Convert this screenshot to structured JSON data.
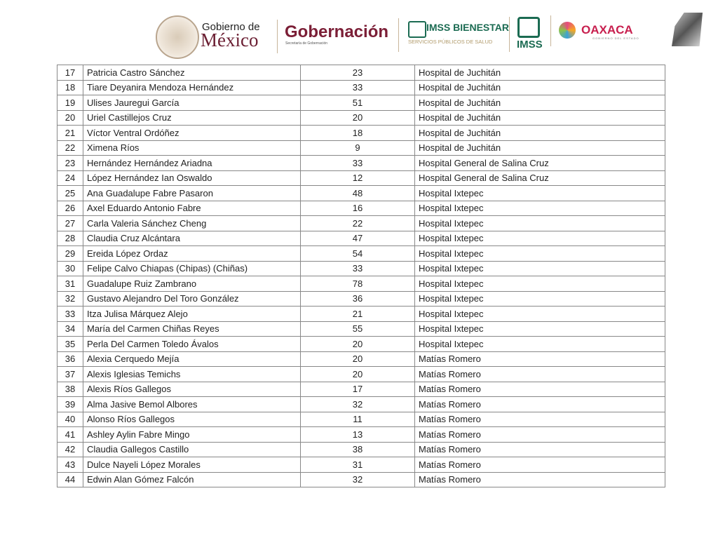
{
  "header": {
    "logos": [
      "Gobierno de México",
      "Gobernación",
      "IMSS Bienestar",
      "IMSS",
      "Oaxaca"
    ],
    "gobierno_de": "Gobierno de",
    "mexico": "México",
    "gobernacion": "Gobernación",
    "gobernacion_sub": "Secretaría de Gobernación",
    "imss_bienestar": "IMSS BIENESTAR",
    "imss_bienestar_sub": "SERVICIOS PÚBLICOS DE SALUD",
    "imss": "IMSS",
    "oaxaca": "OAXACA",
    "oaxaca_sub": "GOBIERNO DEL ESTADO"
  },
  "rows": [
    {
      "n": "17",
      "name": "Patricia Castro Sánchez",
      "age": "23",
      "hospital": "Hospital de Juchitán"
    },
    {
      "n": "18",
      "name": "Tiare Deyanira Mendoza Hernández",
      "age": "33",
      "hospital": "Hospital de Juchitán"
    },
    {
      "n": "19",
      "name": "Ulises Jauregui García",
      "age": "51",
      "hospital": "Hospital de Juchitán"
    },
    {
      "n": "20",
      "name": "Uriel Castillejos Cruz",
      "age": "20",
      "hospital": "Hospital de Juchitán"
    },
    {
      "n": "21",
      "name": "Víctor Ventral Ordóñez",
      "age": "18",
      "hospital": "Hospital de Juchitán"
    },
    {
      "n": "22",
      "name": "Ximena Ríos",
      "age": "9",
      "hospital": "Hospital de Juchitán"
    },
    {
      "n": "23",
      "name": "Hernández Hernández Ariadna",
      "age": "33",
      "hospital": "Hospital General de Salina Cruz"
    },
    {
      "n": "24",
      "name": "López Hernández Ian Oswaldo",
      "age": "12",
      "hospital": "Hospital General de Salina Cruz"
    },
    {
      "n": "25",
      "name": "Ana Guadalupe Fabre Pasaron",
      "age": "48",
      "hospital": "Hospital Ixtepec"
    },
    {
      "n": "26",
      "name": "Axel Eduardo Antonio Fabre",
      "age": "16",
      "hospital": "Hospital Ixtepec"
    },
    {
      "n": "27",
      "name": "Carla Valeria Sánchez Cheng",
      "age": "22",
      "hospital": "Hospital Ixtepec"
    },
    {
      "n": "28",
      "name": "Claudia Cruz Alcántara",
      "age": "47",
      "hospital": "Hospital Ixtepec"
    },
    {
      "n": "29",
      "name": "Ereida López Ordaz",
      "age": "54",
      "hospital": "Hospital Ixtepec"
    },
    {
      "n": "30",
      "name": "Felipe Calvo Chiapas (Chipas) (Chiñas)",
      "age": "33",
      "hospital": "Hospital Ixtepec"
    },
    {
      "n": "31",
      "name": "Guadalupe Ruiz Zambrano",
      "age": "78",
      "hospital": "Hospital Ixtepec"
    },
    {
      "n": "32",
      "name": "Gustavo Alejandro Del Toro González",
      "age": "36",
      "hospital": "Hospital Ixtepec"
    },
    {
      "n": "33",
      "name": "Itza Julisa Márquez Alejo",
      "age": "21",
      "hospital": "Hospital Ixtepec"
    },
    {
      "n": "34",
      "name": "María del Carmen Chiñas Reyes",
      "age": "55",
      "hospital": "Hospital Ixtepec"
    },
    {
      "n": "35",
      "name": "Perla Del Carmen Toledo Ávalos",
      "age": "20",
      "hospital": "Hospital Ixtepec"
    },
    {
      "n": "36",
      "name": "Alexia Cerquedo Mejía",
      "age": "20",
      "hospital": "Matías Romero"
    },
    {
      "n": "37",
      "name": "Alexis Iglesias Temichs",
      "age": "20",
      "hospital": "Matías Romero"
    },
    {
      "n": "38",
      "name": "Alexis Ríos Gallegos",
      "age": "17",
      "hospital": "Matías Romero"
    },
    {
      "n": "39",
      "name": "Alma Jasive Bemol Albores",
      "age": "32",
      "hospital": "Matías Romero"
    },
    {
      "n": "40",
      "name": "Alonso Ríos Gallegos",
      "age": "11",
      "hospital": "Matías Romero"
    },
    {
      "n": "41",
      "name": "Ashley Aylin Fabre Mingo",
      "age": "13",
      "hospital": "Matías Romero"
    },
    {
      "n": "42",
      "name": "Claudia Gallegos Castillo",
      "age": "38",
      "hospital": "Matías Romero"
    },
    {
      "n": "43",
      "name": "Dulce Nayeli López Morales",
      "age": "31",
      "hospital": "Matías Romero"
    },
    {
      "n": "44",
      "name": "Edwin Alan Gómez Falcón",
      "age": "32",
      "hospital": "Matías Romero"
    }
  ]
}
